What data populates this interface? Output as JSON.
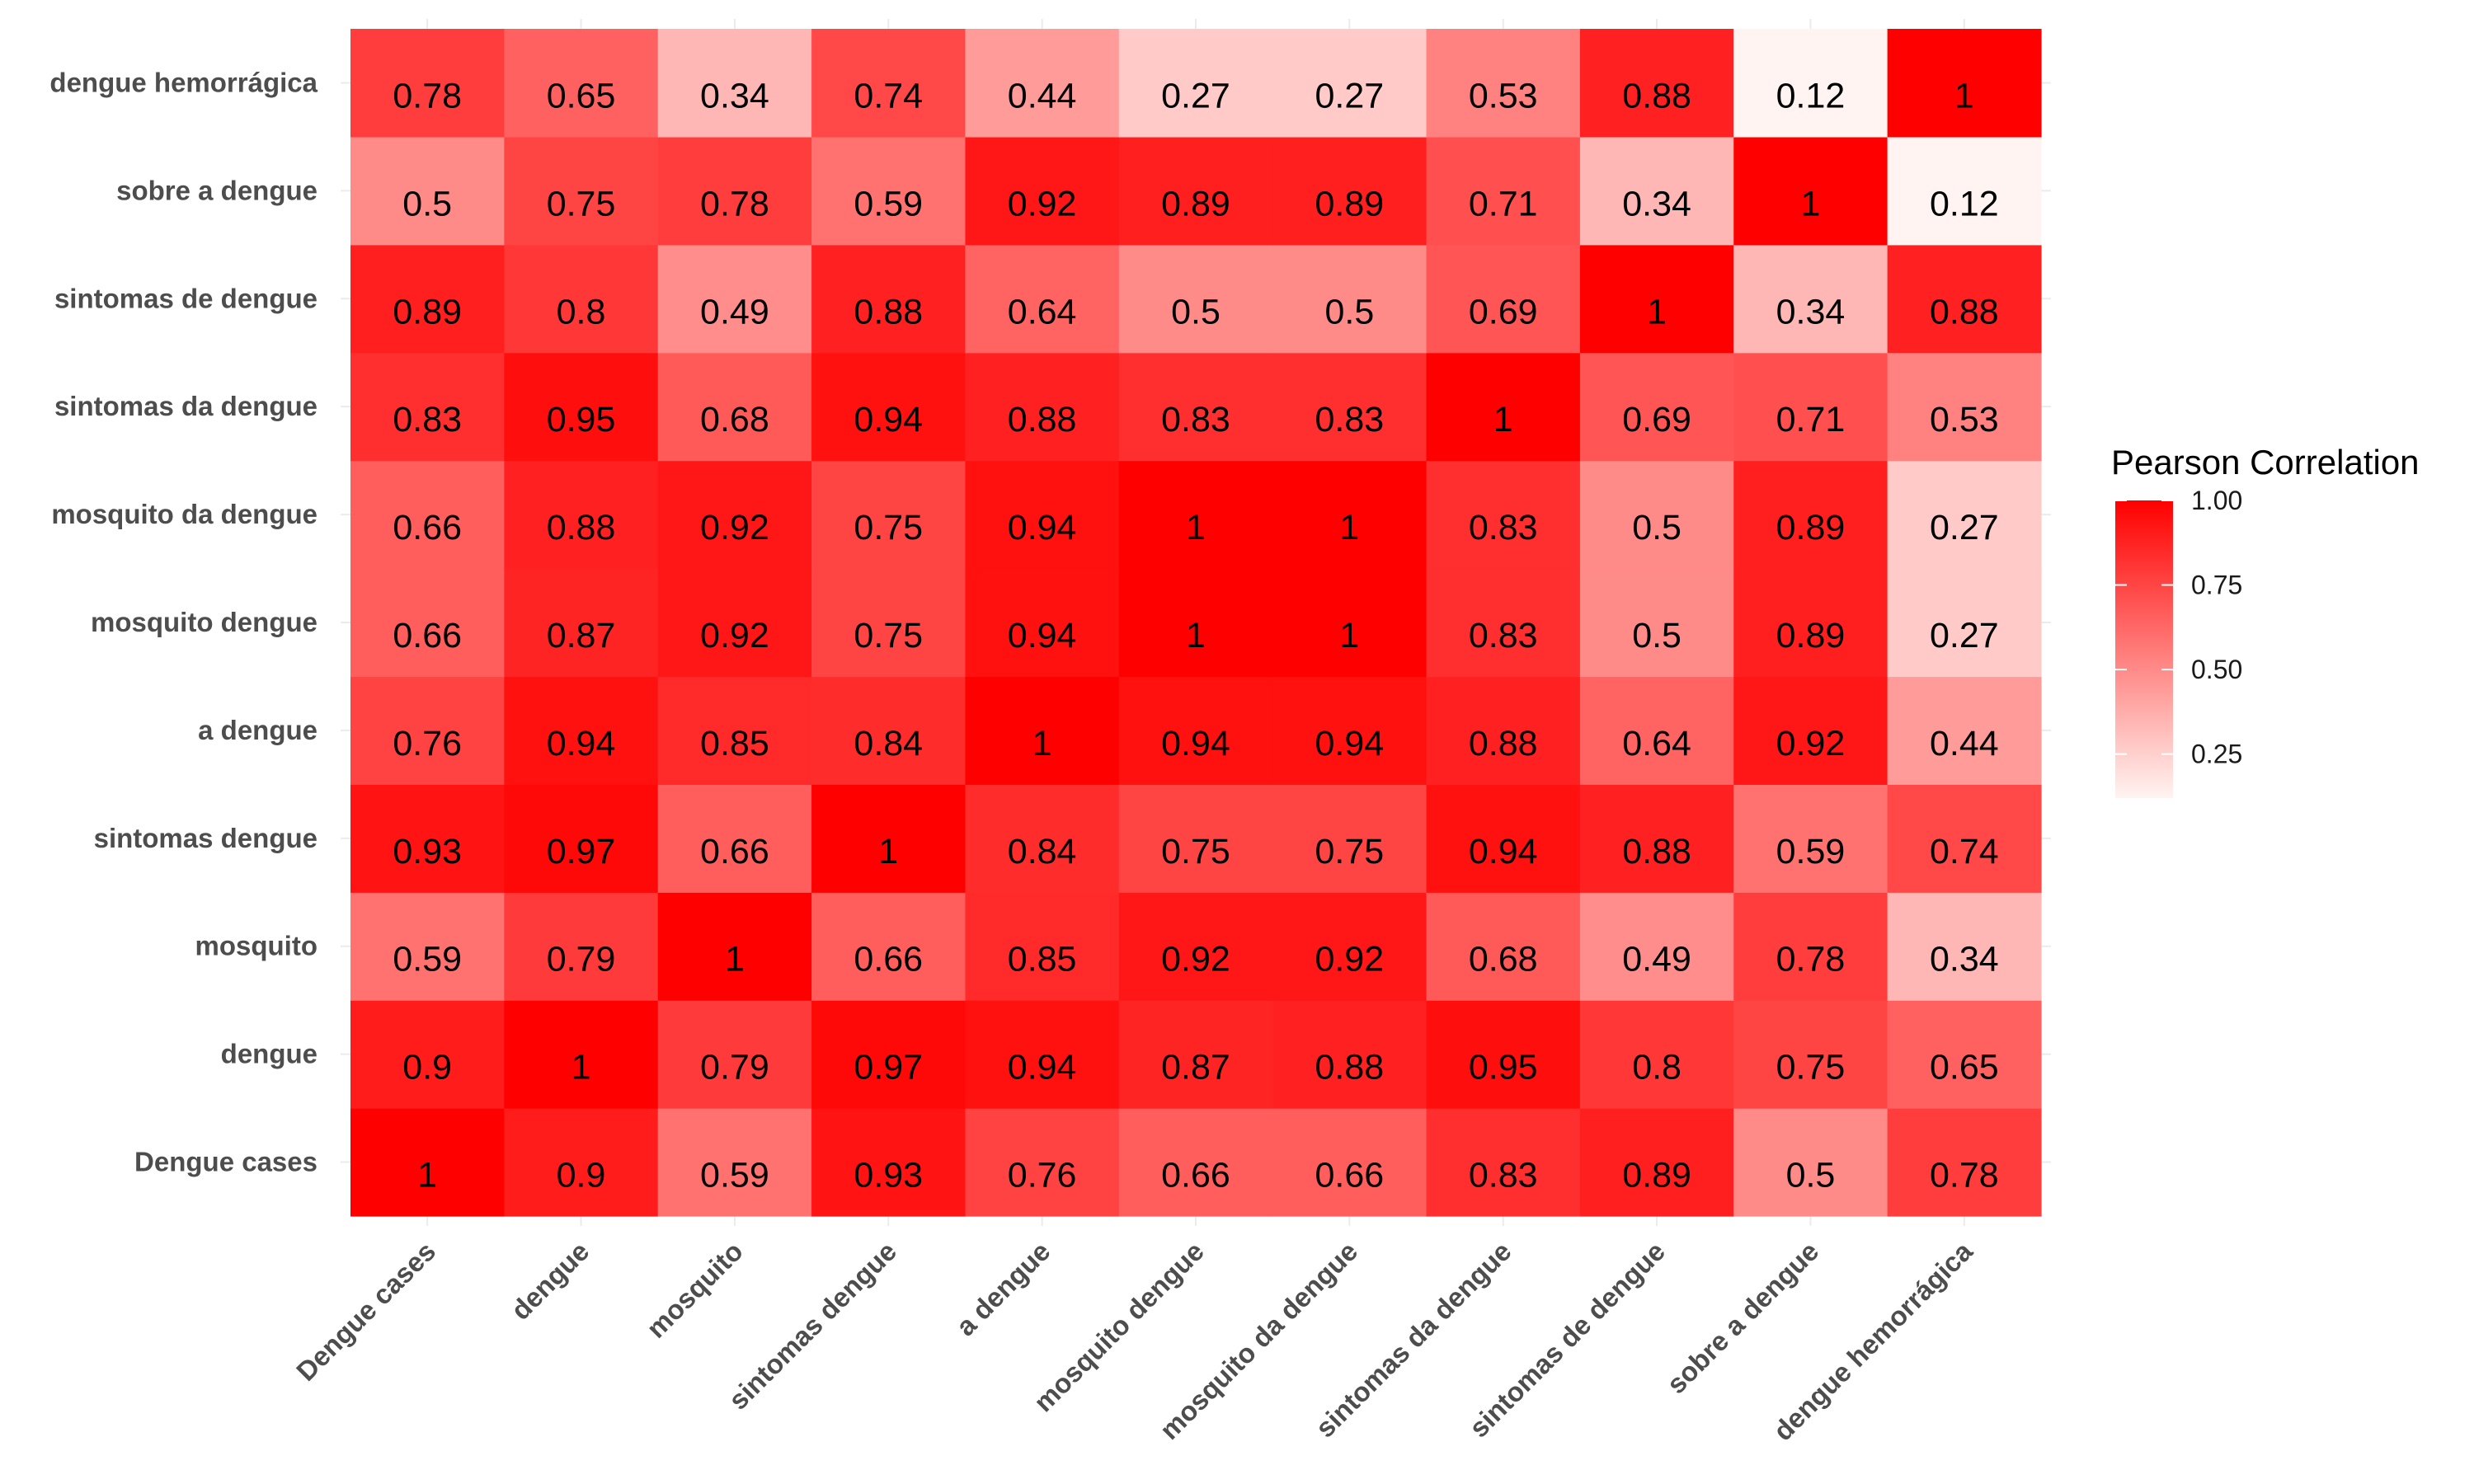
{
  "chart_data": {
    "type": "heatmap",
    "title": "",
    "xlabel": "",
    "ylabel": "",
    "x_categories": [
      "Dengue cases",
      "dengue",
      "mosquito",
      "sintomas dengue",
      "a dengue",
      "mosquito dengue",
      "mosquito da dengue",
      "sintomas da dengue",
      "sintomas de dengue",
      "sobre a dengue",
      "dengue hemorrágica"
    ],
    "y_categories": [
      "Dengue cases",
      "dengue",
      "mosquito",
      "sintomas dengue",
      "a dengue",
      "mosquito dengue",
      "mosquito da dengue",
      "sintomas da dengue",
      "sintomas de dengue",
      "sobre a dengue",
      "dengue hemorrágica"
    ],
    "values": [
      [
        1,
        0.9,
        0.59,
        0.93,
        0.76,
        0.66,
        0.66,
        0.83,
        0.89,
        0.5,
        0.78
      ],
      [
        0.9,
        1,
        0.79,
        0.97,
        0.94,
        0.87,
        0.88,
        0.95,
        0.8,
        0.75,
        0.65
      ],
      [
        0.59,
        0.79,
        1,
        0.66,
        0.85,
        0.92,
        0.92,
        0.68,
        0.49,
        0.78,
        0.34
      ],
      [
        0.93,
        0.97,
        0.66,
        1,
        0.84,
        0.75,
        0.75,
        0.94,
        0.88,
        0.59,
        0.74
      ],
      [
        0.76,
        0.94,
        0.85,
        0.84,
        1,
        0.94,
        0.94,
        0.88,
        0.64,
        0.92,
        0.44
      ],
      [
        0.66,
        0.87,
        0.92,
        0.75,
        0.94,
        1,
        1,
        0.83,
        0.5,
        0.89,
        0.27
      ],
      [
        0.66,
        0.88,
        0.92,
        0.75,
        0.94,
        1,
        1,
        0.83,
        0.5,
        0.89,
        0.27
      ],
      [
        0.83,
        0.95,
        0.68,
        0.94,
        0.88,
        0.83,
        0.83,
        1,
        0.69,
        0.71,
        0.53
      ],
      [
        0.89,
        0.8,
        0.49,
        0.88,
        0.64,
        0.5,
        0.5,
        0.69,
        1,
        0.34,
        0.88
      ],
      [
        0.5,
        0.75,
        0.78,
        0.59,
        0.92,
        0.89,
        0.89,
        0.71,
        0.34,
        1,
        0.12
      ],
      [
        0.78,
        0.65,
        0.34,
        0.74,
        0.44,
        0.27,
        0.27,
        0.53,
        0.88,
        0.12,
        1
      ]
    ],
    "legend": {
      "title": "Pearson Correlation",
      "ticks": [
        "0.25",
        "0.50",
        "0.75",
        "1.00"
      ],
      "tick_values": [
        0.25,
        0.5,
        0.75,
        1.0
      ],
      "range": [
        0.12,
        1.0
      ],
      "placement": "right"
    },
    "color_low": "#fff4f1",
    "color_high": "#ff0000",
    "grid": true
  }
}
